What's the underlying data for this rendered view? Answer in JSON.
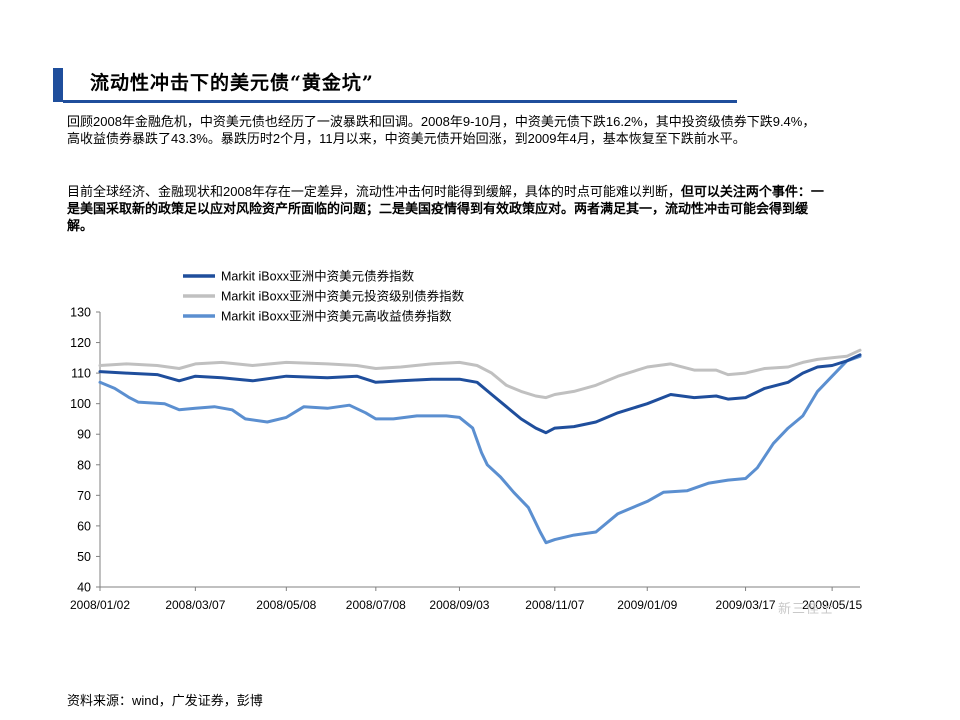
{
  "page": {
    "title": "流动性冲击下的美元债“黄金坑”",
    "para1": "回顾2008年金融危机，中资美元债也经历了一波暴跌和回调。2008年9-10月，中资美元债下跌16.2%，其中投资级债券下跌9.4%，高收益债券暴跌了43.3%。暴跌历时2个月，11月以来，中资美元债开始回涨，到2009年4月，基本恢复至下跌前水平。",
    "para2_normal": "目前全球经济、金融现状和2008年存在一定差异，流动性冲击何时能得到缓解，具体的时点可能难以判断，",
    "para2_bold": "但可以关注两个事件：一是美国采取新的政策足以应对风险资产所面临的问题；二是美国疫情得到有效政策应对。两者满足其一，流动性冲击可能会得到缓解。",
    "source": "资料来源：wind，广发证券，彭博",
    "watermark": "新三佳士"
  },
  "chart_data": {
    "type": "line",
    "title": "",
    "xlabel": "",
    "ylabel": "",
    "ylim": [
      40,
      130
    ],
    "yticks": [
      40,
      50,
      60,
      70,
      80,
      90,
      100,
      110,
      120,
      130
    ],
    "xlim": [
      "2008-01-02",
      "2009-06-03"
    ],
    "xticks": [
      "2008/01/02",
      "2008/03/07",
      "2008/05/08",
      "2008/07/08",
      "2008/09/03",
      "2008/11/07",
      "2009/01/09",
      "2009/03/17",
      "2009/05/15"
    ],
    "grid": false,
    "legend_position": "top-left",
    "series": [
      {
        "name": "Markit iBoxx亚洲中资美元债券指数",
        "color": "#1f4e9c",
        "points": [
          [
            "2008-01-02",
            110.5
          ],
          [
            "2008-01-20",
            110
          ],
          [
            "2008-02-10",
            109.5
          ],
          [
            "2008-02-25",
            107.5
          ],
          [
            "2008-03-07",
            109
          ],
          [
            "2008-03-25",
            108.5
          ],
          [
            "2008-04-15",
            107.5
          ],
          [
            "2008-05-08",
            109
          ],
          [
            "2008-06-05",
            108.5
          ],
          [
            "2008-06-25",
            109
          ],
          [
            "2008-07-08",
            107
          ],
          [
            "2008-07-25",
            107.5
          ],
          [
            "2008-08-15",
            108
          ],
          [
            "2008-09-03",
            108
          ],
          [
            "2008-09-15",
            107
          ],
          [
            "2008-09-25",
            103
          ],
          [
            "2008-10-05",
            99
          ],
          [
            "2008-10-15",
            95
          ],
          [
            "2008-10-25",
            92
          ],
          [
            "2008-11-01",
            90.5
          ],
          [
            "2008-11-07",
            92
          ],
          [
            "2008-11-20",
            92.5
          ],
          [
            "2008-12-05",
            94
          ],
          [
            "2008-12-20",
            97
          ],
          [
            "2009-01-09",
            100
          ],
          [
            "2009-01-25",
            103
          ],
          [
            "2009-02-10",
            102
          ],
          [
            "2009-02-25",
            102.5
          ],
          [
            "2009-03-05",
            101.5
          ],
          [
            "2009-03-17",
            102
          ],
          [
            "2009-03-30",
            105
          ],
          [
            "2009-04-15",
            107
          ],
          [
            "2009-04-25",
            110
          ],
          [
            "2009-05-05",
            112
          ],
          [
            "2009-05-15",
            112.5
          ],
          [
            "2009-05-25",
            114
          ],
          [
            "2009-06-03",
            116
          ]
        ]
      },
      {
        "name": "Markit iBoxx亚洲中资美元投资级别债券指数",
        "color": "#c0c0c0",
        "points": [
          [
            "2008-01-02",
            112.5
          ],
          [
            "2008-01-20",
            113
          ],
          [
            "2008-02-10",
            112.5
          ],
          [
            "2008-02-25",
            111.5
          ],
          [
            "2008-03-07",
            113
          ],
          [
            "2008-03-25",
            113.5
          ],
          [
            "2008-04-15",
            112.5
          ],
          [
            "2008-05-08",
            113.5
          ],
          [
            "2008-06-05",
            113
          ],
          [
            "2008-06-25",
            112.5
          ],
          [
            "2008-07-08",
            111.5
          ],
          [
            "2008-07-25",
            112
          ],
          [
            "2008-08-15",
            113
          ],
          [
            "2008-09-03",
            113.5
          ],
          [
            "2008-09-15",
            112.5
          ],
          [
            "2008-09-25",
            110
          ],
          [
            "2008-10-05",
            106
          ],
          [
            "2008-10-15",
            104
          ],
          [
            "2008-10-25",
            102.5
          ],
          [
            "2008-11-01",
            102
          ],
          [
            "2008-11-07",
            103
          ],
          [
            "2008-11-20",
            104
          ],
          [
            "2008-12-05",
            106
          ],
          [
            "2008-12-20",
            109
          ],
          [
            "2009-01-09",
            112
          ],
          [
            "2009-01-25",
            113
          ],
          [
            "2009-02-10",
            111
          ],
          [
            "2009-02-25",
            111
          ],
          [
            "2009-03-05",
            109.5
          ],
          [
            "2009-03-17",
            110
          ],
          [
            "2009-03-30",
            111.5
          ],
          [
            "2009-04-15",
            112
          ],
          [
            "2009-04-25",
            113.5
          ],
          [
            "2009-05-05",
            114.5
          ],
          [
            "2009-05-15",
            115
          ],
          [
            "2009-05-25",
            115.5
          ],
          [
            "2009-06-03",
            117.5
          ]
        ]
      },
      {
        "name": "Markit iBoxx亚洲中资美元高收益债券指数",
        "color": "#5b8fd0",
        "points": [
          [
            "2008-01-02",
            107
          ],
          [
            "2008-01-12",
            105
          ],
          [
            "2008-01-22",
            102
          ],
          [
            "2008-01-28",
            100.5
          ],
          [
            "2008-02-15",
            100
          ],
          [
            "2008-02-25",
            98
          ],
          [
            "2008-03-07",
            98.5
          ],
          [
            "2008-03-20",
            99
          ],
          [
            "2008-04-01",
            98
          ],
          [
            "2008-04-10",
            95
          ],
          [
            "2008-04-25",
            94
          ],
          [
            "2008-05-08",
            95.5
          ],
          [
            "2008-05-20",
            99
          ],
          [
            "2008-06-05",
            98.5
          ],
          [
            "2008-06-20",
            99.5
          ],
          [
            "2008-07-01",
            97
          ],
          [
            "2008-07-08",
            95
          ],
          [
            "2008-07-20",
            95
          ],
          [
            "2008-08-05",
            96
          ],
          [
            "2008-08-25",
            96
          ],
          [
            "2008-09-03",
            95.5
          ],
          [
            "2008-09-12",
            92
          ],
          [
            "2008-09-18",
            84
          ],
          [
            "2008-09-22",
            80
          ],
          [
            "2008-10-01",
            76
          ],
          [
            "2008-10-10",
            71
          ],
          [
            "2008-10-20",
            66
          ],
          [
            "2008-10-28",
            58
          ],
          [
            "2008-11-01",
            54.5
          ],
          [
            "2008-11-07",
            55.5
          ],
          [
            "2008-11-20",
            57
          ],
          [
            "2008-12-05",
            58
          ],
          [
            "2008-12-20",
            64
          ],
          [
            "2009-01-09",
            68
          ],
          [
            "2009-01-20",
            71
          ],
          [
            "2009-02-05",
            71.5
          ],
          [
            "2009-02-20",
            74
          ],
          [
            "2009-03-05",
            75
          ],
          [
            "2009-03-17",
            75.5
          ],
          [
            "2009-03-25",
            79
          ],
          [
            "2009-04-05",
            87
          ],
          [
            "2009-04-15",
            92
          ],
          [
            "2009-04-25",
            96
          ],
          [
            "2009-05-05",
            104
          ],
          [
            "2009-05-15",
            109
          ],
          [
            "2009-05-25",
            114
          ],
          [
            "2009-06-03",
            115.5
          ]
        ]
      }
    ]
  }
}
